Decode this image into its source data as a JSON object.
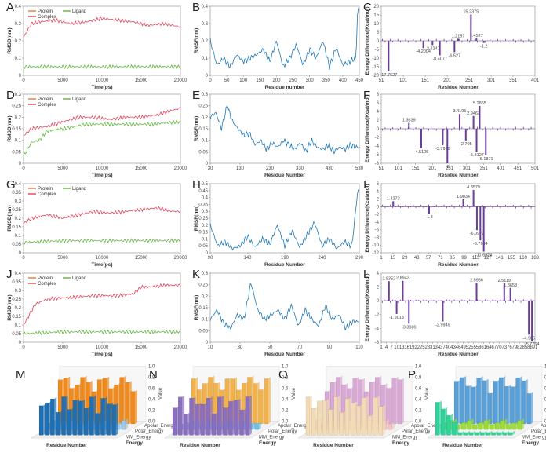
{
  "figure": {
    "colors": {
      "protein": "#e07b39",
      "ligand": "#5cb83a",
      "complex": "#e0455a",
      "rmsf": "#1f77b4",
      "energy": "#6a3d9a"
    }
  },
  "chart_data": [
    {
      "id": "A",
      "type": "line",
      "title": "",
      "xlabel": "Time(ps)",
      "ylabel": "RMSD(nm)",
      "xlim": [
        0,
        20000
      ],
      "ylim": [
        0,
        0.4
      ],
      "xticks": [
        "0",
        "5000",
        "10000",
        "15000",
        "20000"
      ],
      "yticks": [
        "0",
        "0.1",
        "0.2",
        "0.3",
        "0.4"
      ],
      "legend": [
        "Protein",
        "Ligand",
        "Complex"
      ],
      "series": [
        {
          "name": "Complex",
          "color": "#e0455a",
          "x": [
            0,
            1000,
            2000,
            4000,
            6000,
            8000,
            10000,
            12000,
            14000,
            16000,
            18000,
            20000
          ],
          "values": [
            0.22,
            0.3,
            0.31,
            0.32,
            0.3,
            0.31,
            0.33,
            0.32,
            0.31,
            0.29,
            0.3,
            0.28
          ]
        },
        {
          "name": "Ligand",
          "color": "#5cb83a",
          "x": [
            0,
            1000,
            5000,
            10000,
            15000,
            20000
          ],
          "values": [
            0.05,
            0.05,
            0.05,
            0.05,
            0.05,
            0.05
          ]
        }
      ]
    },
    {
      "id": "B",
      "type": "line",
      "xlabel": "Residue number",
      "ylabel": "RMSF(nm)",
      "xlim": [
        0,
        450
      ],
      "ylim": [
        0,
        0.4
      ],
      "xticks": [
        "0",
        "50",
        "100",
        "150",
        "200",
        "250",
        "300",
        "350",
        "400",
        "450"
      ],
      "yticks": [
        "0",
        "0.1",
        "0.2",
        "0.3",
        "0.4"
      ],
      "series": [
        {
          "name": "RMSF",
          "color": "#1f77b4",
          "x": [
            0,
            20,
            40,
            60,
            80,
            100,
            120,
            140,
            160,
            180,
            200,
            220,
            240,
            260,
            280,
            300,
            320,
            340,
            360,
            380,
            400,
            420,
            440,
            445
          ],
          "values": [
            0.2,
            0.06,
            0.1,
            0.05,
            0.12,
            0.08,
            0.1,
            0.12,
            0.15,
            0.08,
            0.2,
            0.05,
            0.1,
            0.18,
            0.06,
            0.15,
            0.1,
            0.2,
            0.05,
            0.16,
            0.06,
            0.08,
            0.1,
            0.38
          ]
        }
      ]
    },
    {
      "id": "C",
      "type": "bar",
      "xlabel": "Residue Number",
      "ylabel": "Energy Difference(Kcal/mol)",
      "xlim": [
        0,
        420
      ],
      "ylim": [
        -20,
        20
      ],
      "xticks": [
        "51",
        "101",
        "151",
        "201",
        "251",
        "301",
        "351",
        "401"
      ],
      "yticks": [
        "-20",
        "-15",
        "-10",
        "-5",
        "0",
        "5",
        "10",
        "15",
        "20"
      ],
      "x": [
        20,
        115,
        140,
        160,
        200,
        210,
        245,
        260,
        280
      ],
      "values": [
        -17.7627,
        -4.2004,
        -2.4247,
        -8.4077,
        -6.527,
        1.2157,
        15.2375,
        1.4527,
        -1.2
      ]
    },
    {
      "id": "D",
      "type": "line",
      "xlabel": "Time(ps)",
      "ylabel": "RMSD(nm)",
      "xlim": [
        0,
        20000
      ],
      "ylim": [
        0,
        0.3
      ],
      "xticks": [
        "0",
        "5000",
        "10000",
        "15000",
        "20000"
      ],
      "yticks": [
        "0",
        "0.05",
        "0.1",
        "0.15",
        "0.2",
        "0.25",
        "0.3"
      ],
      "legend": [
        "Protein",
        "Ligand",
        "Complex"
      ],
      "series": [
        {
          "name": "Complex",
          "color": "#e0455a",
          "x": [
            0,
            1000,
            3000,
            5000,
            7000,
            9000,
            11000,
            13000,
            15000,
            17000,
            19000,
            20000
          ],
          "values": [
            0.12,
            0.15,
            0.16,
            0.18,
            0.2,
            0.2,
            0.19,
            0.2,
            0.2,
            0.21,
            0.23,
            0.24
          ]
        },
        {
          "name": "Ligand",
          "color": "#5cb83a",
          "x": [
            0,
            1000,
            2000,
            3000,
            5000,
            8000,
            12000,
            16000,
            20000
          ],
          "values": [
            0.03,
            0.09,
            0.1,
            0.14,
            0.15,
            0.17,
            0.17,
            0.17,
            0.18
          ]
        }
      ]
    },
    {
      "id": "E",
      "type": "line",
      "xlabel": "Residue Number",
      "ylabel": "RMSF(nm)",
      "xlim": [
        30,
        560
      ],
      "ylim": [
        0,
        0.3
      ],
      "xticks": [
        "30",
        "130",
        "230",
        "330",
        "430",
        "530"
      ],
      "yticks": [
        "0",
        "0.05",
        "0.1",
        "0.15",
        "0.2",
        "0.25",
        "0.3"
      ],
      "series": [
        {
          "name": "RMSF",
          "color": "#1f77b4",
          "x": [
            30,
            50,
            70,
            90,
            110,
            130,
            150,
            170,
            190,
            210,
            230,
            250,
            270,
            290,
            310,
            330,
            350,
            370,
            390,
            410,
            430,
            450,
            470,
            490,
            510,
            530,
            550
          ],
          "values": [
            0.2,
            0.22,
            0.15,
            0.25,
            0.18,
            0.15,
            0.12,
            0.13,
            0.08,
            0.1,
            0.06,
            0.09,
            0.07,
            0.1,
            0.08,
            0.06,
            0.09,
            0.05,
            0.1,
            0.07,
            0.06,
            0.08,
            0.05,
            0.07,
            0.06,
            0.08,
            0.07
          ]
        }
      ]
    },
    {
      "id": "F",
      "type": "bar",
      "xlabel": "Residue Number",
      "ylabel": "Energy Difference(Kcal/mol)",
      "xlim": [
        0,
        500
      ],
      "ylim": [
        -8,
        8
      ],
      "xticks": [
        "51",
        "101",
        "151",
        "201",
        "251",
        "301",
        "351",
        "401",
        "451",
        "501"
      ],
      "yticks": [
        "-8",
        "-6",
        "-4",
        "-2",
        "0",
        "2",
        "4",
        "6",
        "8"
      ],
      "x": [
        90,
        130,
        200,
        215,
        255,
        275,
        300,
        310,
        320,
        340
      ],
      "values": [
        1.3639,
        -4.5105,
        -3.7976,
        -8,
        3.4195,
        -2.705,
        2.9462,
        -5.3127,
        5.2865,
        -6.1871
      ]
    },
    {
      "id": "G",
      "type": "line",
      "xlabel": "Time(ps)",
      "ylabel": "RMSD(nm)",
      "xlim": [
        0,
        20000
      ],
      "ylim": [
        0,
        0.4
      ],
      "xticks": [
        "0",
        "5000",
        "10000",
        "15000",
        "20000"
      ],
      "yticks": [
        "0",
        "0.05",
        "0.1",
        "0.15",
        "0.2",
        "0.25",
        "0.3",
        "0.35",
        "0.4"
      ],
      "legend": [
        "Protein",
        "Ligand",
        "Complex"
      ],
      "series": [
        {
          "name": "Complex",
          "color": "#e0455a",
          "x": [
            0,
            1000,
            3000,
            5000,
            7000,
            9000,
            11000,
            13000,
            15000,
            17000,
            19000,
            20000
          ],
          "values": [
            0.17,
            0.2,
            0.22,
            0.2,
            0.22,
            0.24,
            0.23,
            0.24,
            0.25,
            0.26,
            0.24,
            0.24
          ]
        },
        {
          "name": "Ligand",
          "color": "#5cb83a",
          "x": [
            0,
            5000,
            10000,
            15000,
            20000
          ],
          "values": [
            0.06,
            0.07,
            0.07,
            0.07,
            0.07
          ]
        }
      ]
    },
    {
      "id": "H",
      "type": "line",
      "xlabel": "Residue Number",
      "ylabel": "RMSF(nm)",
      "xlim": [
        90,
        290
      ],
      "ylim": [
        0,
        0.5
      ],
      "xticks": [
        "90",
        "140",
        "190",
        "240",
        "290"
      ],
      "yticks": [
        "0",
        "0.05",
        "0.1",
        "0.15",
        "0.2",
        "0.25",
        "0.3",
        "0.35",
        "0.4",
        "0.45",
        "0.5"
      ],
      "series": [
        {
          "name": "RMSF",
          "color": "#1f77b4",
          "x": [
            90,
            100,
            110,
            120,
            130,
            140,
            150,
            160,
            170,
            180,
            190,
            200,
            210,
            220,
            230,
            240,
            250,
            260,
            270,
            280,
            288
          ],
          "values": [
            0.2,
            0.05,
            0.08,
            0.03,
            0.05,
            0.12,
            0.04,
            0.1,
            0.06,
            0.2,
            0.05,
            0.16,
            0.04,
            0.13,
            0.22,
            0.05,
            0.1,
            0.03,
            0.08,
            0.05,
            0.45
          ]
        }
      ]
    },
    {
      "id": "I",
      "type": "bar",
      "xlabel": "Residue Number",
      "ylabel": "Energy Difference(Kcal/mol)",
      "xlim": [
        0,
        180
      ],
      "ylim": [
        -12,
        6
      ],
      "xticks": [
        "1",
        "15",
        "29",
        "43",
        "57",
        "71",
        "85",
        "99",
        "113",
        "127",
        "141",
        "155",
        "169",
        "183"
      ],
      "yticks": [
        "-12",
        "-10",
        "-8",
        "-6",
        "-4",
        "-2",
        "0",
        "2",
        "4",
        "6"
      ],
      "x": [
        14,
        56,
        96,
        108,
        112,
        116,
        120
      ],
      "values": [
        1.4273,
        -1.8,
        1.9034,
        4.3579,
        -6.0979,
        -8.7604,
        -11.6924
      ]
    },
    {
      "id": "J",
      "type": "line",
      "xlabel": "Time(ps)",
      "ylabel": "RMSD(nm)",
      "xlim": [
        0,
        20000
      ],
      "ylim": [
        0,
        0.4
      ],
      "xticks": [
        "0",
        "5000",
        "10000",
        "15000",
        "20000"
      ],
      "yticks": [
        "0",
        "0.05",
        "0.1",
        "0.15",
        "0.2",
        "0.25",
        "0.3",
        "0.35",
        "0.4"
      ],
      "legend": [
        "Protein",
        "Ligand",
        "Complex"
      ],
      "series": [
        {
          "name": "Complex",
          "color": "#e0455a",
          "x": [
            0,
            1500,
            3000,
            6000,
            9000,
            12000,
            14000,
            15000,
            16000,
            18000,
            20000
          ],
          "values": [
            0.1,
            0.22,
            0.25,
            0.26,
            0.27,
            0.27,
            0.28,
            0.32,
            0.32,
            0.33,
            0.33
          ]
        },
        {
          "name": "Ligand",
          "color": "#5cb83a",
          "x": [
            0,
            5000,
            10000,
            15000,
            20000
          ],
          "values": [
            0.05,
            0.06,
            0.06,
            0.06,
            0.06
          ]
        }
      ]
    },
    {
      "id": "K",
      "type": "line",
      "xlabel": "Residue Number",
      "ylabel": "RMSF(nm)",
      "xlim": [
        10,
        120
      ],
      "ylim": [
        0,
        0.3
      ],
      "xticks": [
        "10",
        "30",
        "50",
        "70",
        "90",
        "110"
      ],
      "yticks": [
        "0",
        "0.05",
        "0.1",
        "0.15",
        "0.2",
        "0.25",
        "0.3"
      ],
      "series": [
        {
          "name": "RMSF",
          "color": "#1f77b4",
          "x": [
            10,
            15,
            20,
            25,
            30,
            35,
            40,
            45,
            50,
            55,
            60,
            65,
            70,
            75,
            80,
            85,
            90,
            95,
            100,
            105,
            110,
            115
          ],
          "values": [
            0.1,
            0.14,
            0.08,
            0.06,
            0.12,
            0.1,
            0.26,
            0.14,
            0.1,
            0.12,
            0.14,
            0.1,
            0.16,
            0.07,
            0.14,
            0.1,
            0.07,
            0.16,
            0.1,
            0.12,
            0.06,
            0.09
          ]
        }
      ]
    },
    {
      "id": "L",
      "type": "bar",
      "xlabel": "Residue Number",
      "ylabel": "Energy Difference(Kcal/mol)",
      "xlim": [
        0,
        100
      ],
      "ylim": [
        -6,
        4
      ],
      "xticks": [
        "1",
        "4",
        "7",
        "10",
        "13",
        "16",
        "19",
        "22",
        "25",
        "28",
        "31",
        "34",
        "37",
        "40",
        "43",
        "46",
        "49",
        "52",
        "55",
        "58",
        "61",
        "64",
        "67",
        "70",
        "73",
        "76",
        "79",
        "82",
        "85",
        "88",
        "91"
      ],
      "yticks": [
        "-6",
        "-4",
        "-2",
        "0",
        "2",
        "4"
      ],
      "x": [
        5,
        10,
        14,
        18,
        40,
        62,
        80,
        84,
        96,
        98
      ],
      "values": [
        2.8352,
        -1.9013,
        2.8943,
        -3.3089,
        -2.9949,
        2.5956,
        2.5119,
        1.8658,
        -4.906,
        -5.7764
      ]
    },
    {
      "id": "M",
      "type": "bar3d",
      "xlabel": "Residue Number",
      "ylabel": "Energy",
      "zlabel": "Value",
      "zticks": [
        "0.0",
        "0.2",
        "0.4",
        "0.6",
        "0.8",
        "1.0"
      ],
      "categories": [
        "MM_Energy",
        "Polar_Energy",
        "Apolar_Energy"
      ],
      "colors": [
        "#1f6fb2",
        "#9ec9e8",
        "#f08a1c"
      ]
    },
    {
      "id": "N",
      "type": "bar3d",
      "xlabel": "Residue Number",
      "ylabel": "Energy",
      "zlabel": "Value",
      "zticks": [
        "0.0",
        "0.2",
        "0.4",
        "0.6",
        "0.8",
        "1.0"
      ],
      "categories": [
        "MM_Energy",
        "Polar_Energy",
        "Apolar_Energy"
      ],
      "colors": [
        "#8a6fc1",
        "#6ec1e4",
        "#f2b24b"
      ]
    },
    {
      "id": "O",
      "type": "bar3d",
      "xlabel": "Residue Number",
      "ylabel": "Energy",
      "zlabel": "Value",
      "zticks": [
        "0.0",
        "0.2",
        "0.4",
        "0.6",
        "0.8",
        "1.0"
      ],
      "categories": [
        "MM_Energy",
        "Polar_Energy",
        "Apolar_Energy"
      ],
      "colors": [
        "#f3dcb5",
        "#f2c4c4",
        "#d9a8d4"
      ]
    },
    {
      "id": "P",
      "type": "bar3d",
      "xlabel": "Residue Number",
      "ylabel": "Energy",
      "zlabel": "Value",
      "zticks": [
        "0.0",
        "0.2",
        "0.4",
        "0.6",
        "0.8",
        "1.0"
      ],
      "categories": [
        "MM_Energy",
        "Polar_Energy",
        "Apolar_Energy"
      ],
      "colors": [
        "#2fd39a",
        "#9edc3a",
        "#5aa0d8"
      ]
    }
  ]
}
